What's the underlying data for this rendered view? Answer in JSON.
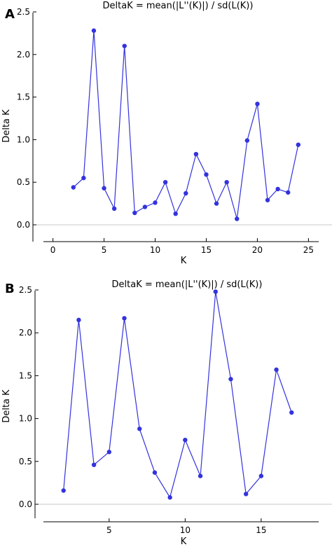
{
  "chart_data": [
    {
      "type": "line",
      "panel": "A",
      "title": "DeltaK = mean(|L''(K)|) / sd(L(K))",
      "xlabel": "K",
      "ylabel": "Delta K",
      "xlim": [
        -1,
        26
      ],
      "ylim": [
        -0.2,
        2.5
      ],
      "xticks": [
        "0",
        "5",
        "10",
        "15",
        "20",
        "25"
      ],
      "yticks": [
        "0.0",
        "0.5",
        "1.0",
        "1.5",
        "2.0",
        "2.5"
      ],
      "grid": false,
      "color": "#3333dd",
      "x": [
        2,
        3,
        4,
        5,
        6,
        7,
        8,
        9,
        10,
        11,
        12,
        13,
        14,
        15,
        16,
        17,
        18,
        19,
        20,
        21,
        22,
        23,
        24
      ],
      "y": [
        0.44,
        0.55,
        2.28,
        0.43,
        0.19,
        2.1,
        0.14,
        0.21,
        0.26,
        0.5,
        0.13,
        0.37,
        0.83,
        0.59,
        0.25,
        0.5,
        0.07,
        0.99,
        1.42,
        0.29,
        0.42,
        0.38,
        0.94
      ]
    },
    {
      "type": "line",
      "panel": "B",
      "title": "DeltaK = mean(|L''(K)|) / sd(L(K))",
      "xlabel": "K",
      "ylabel": "Delta K",
      "xlim": [
        1,
        18
      ],
      "ylim": [
        -0.15,
        2.75
      ],
      "xticks": [
        "5",
        "10",
        "15"
      ],
      "yticks": [
        "0.0",
        "0.5",
        "1.0",
        "1.5",
        "2.0",
        "2.5"
      ],
      "grid": false,
      "color": "#3333dd",
      "x": [
        2,
        3,
        4,
        5,
        6,
        7,
        8,
        9,
        10,
        11,
        12,
        13,
        14,
        15,
        16,
        17
      ],
      "y": [
        0.16,
        2.15,
        0.46,
        0.61,
        2.17,
        0.88,
        0.37,
        0.08,
        0.75,
        0.33,
        2.48,
        1.46,
        0.12,
        0.33,
        1.57,
        1.07
      ]
    }
  ]
}
